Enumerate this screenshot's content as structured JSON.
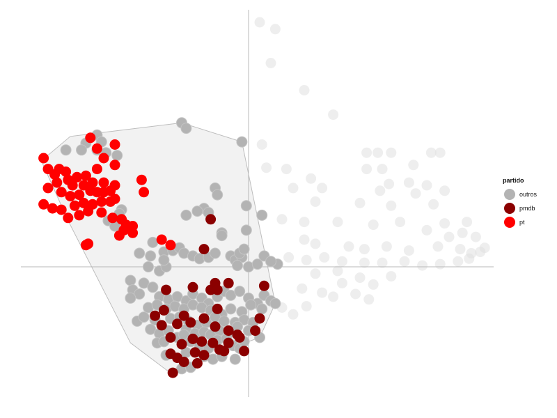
{
  "chart_data": {
    "type": "scatter",
    "title": "",
    "xlabel": "",
    "ylabel": "",
    "xlim": [
      -1.0,
      1.1
    ],
    "ylim": [
      -1.0,
      1.9
    ],
    "reference_lines": {
      "x": 0,
      "y": 0
    },
    "legend": {
      "title": "partido",
      "placement": "right"
    },
    "series": [
      {
        "name": "outros",
        "color": "#b3b3b3"
      },
      {
        "name": "pmdb",
        "color": "#8b0000"
      },
      {
        "name": "pt",
        "color": "#ff0000"
      }
    ],
    "background_series": {
      "color": "#e0e0e0",
      "points": [
        [
          0.05,
          1.8
        ],
        [
          0.12,
          1.75
        ],
        [
          0.1,
          1.5
        ],
        [
          0.25,
          1.3
        ],
        [
          0.38,
          1.12
        ],
        [
          0.06,
          0.9
        ],
        [
          0.53,
          0.84
        ],
        [
          0.58,
          0.84
        ],
        [
          0.64,
          0.84
        ],
        [
          0.82,
          0.84
        ],
        [
          0.86,
          0.84
        ],
        [
          0.08,
          0.73
        ],
        [
          0.17,
          0.72
        ],
        [
          0.53,
          0.72
        ],
        [
          0.6,
          0.72
        ],
        [
          0.74,
          0.75
        ],
        [
          0.28,
          0.65
        ],
        [
          0.63,
          0.61
        ],
        [
          0.72,
          0.62
        ],
        [
          0.2,
          0.58
        ],
        [
          0.33,
          0.58
        ],
        [
          0.59,
          0.56
        ],
        [
          0.8,
          0.6
        ],
        [
          0.75,
          0.54
        ],
        [
          0.88,
          0.56
        ],
        [
          0.3,
          0.48
        ],
        [
          0.5,
          0.47
        ],
        [
          0.64,
          0.45
        ],
        [
          0.83,
          0.46
        ],
        [
          0.15,
          0.35
        ],
        [
          0.25,
          0.33
        ],
        [
          0.4,
          0.33
        ],
        [
          0.56,
          0.31
        ],
        [
          0.68,
          0.33
        ],
        [
          0.88,
          0.32
        ],
        [
          0.98,
          0.33
        ],
        [
          0.8,
          0.27
        ],
        [
          0.9,
          0.22
        ],
        [
          0.96,
          0.25
        ],
        [
          1.02,
          0.22
        ],
        [
          1.06,
          0.14
        ],
        [
          0.25,
          0.2
        ],
        [
          0.3,
          0.17
        ],
        [
          0.45,
          0.15
        ],
        [
          0.52,
          0.13
        ],
        [
          0.62,
          0.15
        ],
        [
          0.72,
          0.12
        ],
        [
          0.85,
          0.15
        ],
        [
          0.95,
          0.13
        ],
        [
          1.0,
          0.1
        ],
        [
          1.04,
          0.11
        ],
        [
          0.18,
          0.07
        ],
        [
          0.26,
          0.05
        ],
        [
          0.34,
          0.07
        ],
        [
          0.42,
          0.04
        ],
        [
          0.52,
          0.03
        ],
        [
          0.6,
          0.03
        ],
        [
          0.7,
          0.04
        ],
        [
          0.78,
          0.01
        ],
        [
          0.86,
          0.02
        ],
        [
          0.94,
          0.04
        ],
        [
          0.99,
          0.06
        ],
        [
          0.3,
          -0.05
        ],
        [
          0.4,
          -0.03
        ],
        [
          0.5,
          -0.08
        ],
        [
          0.56,
          -0.13
        ],
        [
          0.64,
          -0.07
        ],
        [
          0.42,
          -0.12
        ],
        [
          0.24,
          -0.16
        ],
        [
          0.33,
          -0.19
        ],
        [
          0.38,
          -0.22
        ],
        [
          0.48,
          -0.2
        ],
        [
          0.54,
          -0.24
        ],
        [
          0.26,
          -0.29
        ],
        [
          0.2,
          -0.35
        ],
        [
          0.15,
          -0.3
        ]
      ]
    },
    "hull": {
      "series": "outros",
      "vertices": [
        [
          -0.3,
          1.06
        ],
        [
          -0.03,
          0.92
        ],
        [
          0.12,
          -0.27
        ],
        [
          0.05,
          -0.52
        ],
        [
          -0.36,
          -0.77
        ],
        [
          -0.53,
          -0.56
        ],
        [
          -0.81,
          0.34
        ],
        [
          -0.93,
          0.78
        ],
        [
          -0.8,
          0.96
        ]
      ]
    },
    "points": {
      "pt": [
        [
          -0.92,
          0.8
        ],
        [
          -0.9,
          0.72
        ],
        [
          -0.87,
          0.68
        ],
        [
          -0.85,
          0.72
        ],
        [
          -0.82,
          0.7
        ],
        [
          -0.9,
          0.58
        ],
        [
          -0.86,
          0.62
        ],
        [
          -0.81,
          0.64
        ],
        [
          -0.77,
          0.66
        ],
        [
          -0.73,
          0.67
        ],
        [
          -0.68,
          0.72
        ],
        [
          -0.65,
          0.62
        ],
        [
          -0.7,
          0.62
        ],
        [
          -0.74,
          0.6
        ],
        [
          -0.79,
          0.6
        ],
        [
          -0.84,
          0.55
        ],
        [
          -0.8,
          0.52
        ],
        [
          -0.76,
          0.53
        ],
        [
          -0.71,
          0.56
        ],
        [
          -0.68,
          0.55
        ],
        [
          -0.65,
          0.55
        ],
        [
          -0.62,
          0.56
        ],
        [
          -0.6,
          0.6
        ],
        [
          -0.92,
          0.46
        ],
        [
          -0.88,
          0.43
        ],
        [
          -0.84,
          0.42
        ],
        [
          -0.78,
          0.45
        ],
        [
          -0.74,
          0.47
        ],
        [
          -0.7,
          0.46
        ],
        [
          -0.66,
          0.48
        ],
        [
          -0.62,
          0.48
        ],
        [
          -0.6,
          0.5
        ],
        [
          -0.81,
          0.36
        ],
        [
          -0.76,
          0.38
        ],
        [
          -0.72,
          0.41
        ],
        [
          -0.66,
          0.4
        ],
        [
          -0.61,
          0.36
        ],
        [
          -0.57,
          0.35
        ],
        [
          -0.55,
          0.31
        ],
        [
          -0.52,
          0.3
        ],
        [
          -0.56,
          0.27
        ],
        [
          -0.58,
          0.23
        ],
        [
          -0.52,
          0.25
        ],
        [
          -0.73,
          0.16
        ],
        [
          -0.72,
          0.17
        ],
        [
          -0.71,
          0.95
        ],
        [
          -0.68,
          0.87
        ],
        [
          -0.65,
          0.8
        ],
        [
          -0.6,
          0.75
        ],
        [
          -0.48,
          0.64
        ],
        [
          -0.47,
          0.55
        ],
        [
          -0.39,
          0.2
        ],
        [
          -0.35,
          0.16
        ],
        [
          -0.6,
          0.9
        ]
      ],
      "pmdb": [
        [
          -0.17,
          0.35
        ],
        [
          -0.2,
          0.13
        ],
        [
          -0.37,
          -0.17
        ],
        [
          -0.25,
          -0.15
        ],
        [
          -0.15,
          -0.12
        ],
        [
          -0.17,
          -0.17
        ],
        [
          -0.14,
          -0.17
        ],
        [
          -0.09,
          -0.12
        ],
        [
          0.07,
          -0.14
        ],
        [
          -0.39,
          -0.43
        ],
        [
          -0.32,
          -0.42
        ],
        [
          -0.26,
          -0.41
        ],
        [
          -0.2,
          -0.38
        ],
        [
          -0.15,
          -0.44
        ],
        [
          -0.09,
          -0.47
        ],
        [
          -0.05,
          -0.5
        ],
        [
          -0.35,
          -0.52
        ],
        [
          -0.3,
          -0.57
        ],
        [
          -0.25,
          -0.53
        ],
        [
          -0.21,
          -0.55
        ],
        [
          -0.16,
          -0.56
        ],
        [
          -0.11,
          -0.62
        ],
        [
          -0.35,
          -0.64
        ],
        [
          -0.32,
          -0.67
        ],
        [
          -0.29,
          -0.7
        ],
        [
          -0.34,
          -0.78
        ],
        [
          -0.23,
          -0.71
        ],
        [
          -0.09,
          -0.56
        ],
        [
          -0.02,
          -0.62
        ],
        [
          0.05,
          -0.38
        ],
        [
          0.03,
          -0.47
        ],
        [
          -0.04,
          -0.52
        ],
        [
          -0.29,
          -0.36
        ],
        [
          -0.14,
          -0.31
        ],
        [
          -0.38,
          -0.32
        ],
        [
          -0.42,
          -0.36
        ],
        [
          -0.13,
          -0.61
        ],
        [
          -0.24,
          -0.63
        ],
        [
          -0.2,
          -0.65
        ]
      ],
      "outros": [
        [
          -0.3,
          1.06
        ],
        [
          -0.28,
          1.02
        ],
        [
          -0.03,
          0.92
        ],
        [
          -0.68,
          0.97
        ],
        [
          -0.73,
          0.91
        ],
        [
          -0.66,
          0.92
        ],
        [
          -0.82,
          0.86
        ],
        [
          -0.75,
          0.86
        ],
        [
          -0.68,
          0.86
        ],
        [
          -0.64,
          0.84
        ],
        [
          -0.59,
          0.82
        ],
        [
          -0.15,
          0.58
        ],
        [
          -0.14,
          0.53
        ],
        [
          -0.2,
          0.43
        ],
        [
          -0.23,
          0.41
        ],
        [
          -0.28,
          0.38
        ],
        [
          -0.18,
          0.4
        ],
        [
          -0.01,
          0.45
        ],
        [
          0.06,
          0.38
        ],
        [
          -0.12,
          0.25
        ],
        [
          -0.12,
          0.23
        ],
        [
          -0.01,
          0.27
        ],
        [
          -0.57,
          0.42
        ],
        [
          -0.58,
          0.39
        ],
        [
          -0.63,
          0.34
        ],
        [
          -0.6,
          0.3
        ],
        [
          -0.43,
          0.18
        ],
        [
          -0.49,
          0.1
        ],
        [
          -0.44,
          0.08
        ],
        [
          -0.38,
          0.11
        ],
        [
          -0.34,
          0.12
        ],
        [
          -0.31,
          0.14
        ],
        [
          -0.29,
          0.1
        ],
        [
          -0.25,
          0.08
        ],
        [
          -0.22,
          0.06
        ],
        [
          -0.18,
          0.07
        ],
        [
          -0.15,
          0.1
        ],
        [
          -0.08,
          0.08
        ],
        [
          -0.06,
          0.05
        ],
        [
          -0.03,
          0.07
        ],
        [
          -0.05,
          0.01
        ],
        [
          0.0,
          0.0
        ],
        [
          -0.04,
          0.1
        ],
        [
          -0.02,
          0.13
        ],
        [
          0.04,
          0.02
        ],
        [
          0.07,
          0.08
        ],
        [
          0.13,
          0.02
        ],
        [
          -0.4,
          -0.03
        ],
        [
          -0.37,
          0.0
        ],
        [
          -0.45,
          0.0
        ],
        [
          -0.53,
          -0.1
        ],
        [
          -0.47,
          -0.12
        ],
        [
          -0.43,
          -0.15
        ],
        [
          -0.52,
          -0.17
        ],
        [
          -0.49,
          -0.2
        ],
        [
          -0.53,
          -0.23
        ],
        [
          -0.4,
          -0.22
        ],
        [
          -0.36,
          -0.24
        ],
        [
          -0.32,
          -0.22
        ],
        [
          -0.28,
          -0.25
        ],
        [
          -0.25,
          -0.2
        ],
        [
          -0.21,
          -0.23
        ],
        [
          -0.18,
          -0.27
        ],
        [
          -0.14,
          -0.22
        ],
        [
          -0.11,
          -0.18
        ],
        [
          -0.08,
          -0.21
        ],
        [
          -0.04,
          -0.18
        ],
        [
          0.0,
          -0.23
        ],
        [
          0.04,
          -0.27
        ],
        [
          0.07,
          -0.21
        ],
        [
          0.1,
          -0.25
        ],
        [
          0.12,
          -0.27
        ],
        [
          -0.45,
          -0.3
        ],
        [
          -0.41,
          -0.28
        ],
        [
          -0.37,
          -0.31
        ],
        [
          -0.33,
          -0.29
        ],
        [
          -0.29,
          -0.31
        ],
        [
          -0.25,
          -0.28
        ],
        [
          -0.21,
          -0.3
        ],
        [
          -0.17,
          -0.32
        ],
        [
          -0.12,
          -0.35
        ],
        [
          -0.08,
          -0.31
        ],
        [
          -0.03,
          -0.33
        ],
        [
          0.01,
          -0.28
        ],
        [
          0.06,
          -0.31
        ],
        [
          -0.5,
          -0.4
        ],
        [
          -0.47,
          -0.37
        ],
        [
          -0.42,
          -0.39
        ],
        [
          -0.35,
          -0.38
        ],
        [
          -0.31,
          -0.37
        ],
        [
          -0.27,
          -0.4
        ],
        [
          -0.23,
          -0.43
        ],
        [
          -0.19,
          -0.41
        ],
        [
          -0.15,
          -0.37
        ],
        [
          -0.11,
          -0.4
        ],
        [
          -0.06,
          -0.41
        ],
        [
          -0.02,
          -0.39
        ],
        [
          0.02,
          -0.41
        ],
        [
          -0.44,
          -0.46
        ],
        [
          -0.4,
          -0.49
        ],
        [
          -0.36,
          -0.47
        ],
        [
          -0.28,
          -0.46
        ],
        [
          -0.24,
          -0.49
        ],
        [
          -0.2,
          -0.48
        ],
        [
          -0.17,
          -0.5
        ],
        [
          -0.13,
          -0.47
        ],
        [
          -0.09,
          -0.49
        ],
        [
          -0.05,
          -0.44
        ],
        [
          0.0,
          -0.47
        ],
        [
          -0.41,
          -0.56
        ],
        [
          -0.38,
          -0.55
        ],
        [
          -0.32,
          -0.52
        ],
        [
          -0.29,
          -0.5
        ],
        [
          -0.26,
          -0.55
        ],
        [
          -0.22,
          -0.58
        ],
        [
          -0.18,
          -0.6
        ],
        [
          -0.14,
          -0.54
        ],
        [
          -0.1,
          -0.53
        ],
        [
          -0.07,
          -0.58
        ],
        [
          -0.04,
          -0.6
        ],
        [
          -0.02,
          -0.55
        ],
        [
          0.05,
          -0.52
        ],
        [
          -0.37,
          -0.65
        ],
        [
          -0.28,
          -0.63
        ],
        [
          -0.2,
          -0.66
        ],
        [
          -0.16,
          -0.68
        ],
        [
          -0.12,
          -0.66
        ],
        [
          -0.06,
          -0.68
        ],
        [
          -0.3,
          -0.75
        ],
        [
          -0.26,
          -0.74
        ],
        [
          0.1,
          0.04
        ],
        [
          -0.38,
          0.05
        ]
      ]
    }
  }
}
